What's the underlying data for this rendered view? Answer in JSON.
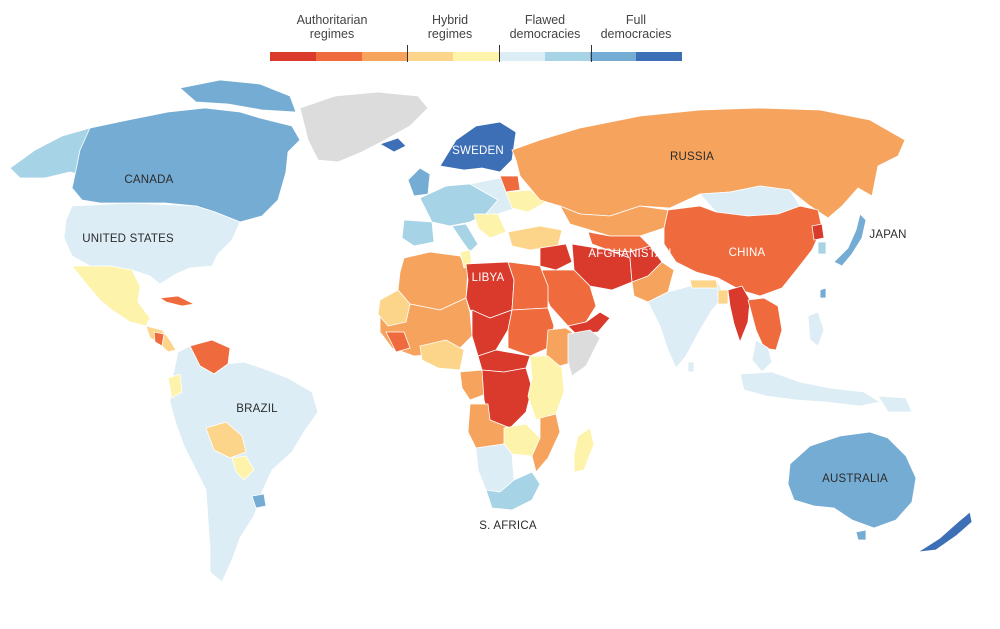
{
  "legend": {
    "categories": [
      {
        "label": "Authoritarian\nregimes",
        "colors": [
          "#d93a2b",
          "#ef6a3c",
          "#f6a35d"
        ]
      },
      {
        "label": "Hybrid\nregimes",
        "colors": [
          "#fdd58a",
          "#fdf3aa"
        ]
      },
      {
        "label": "Flawed\ndemocracies",
        "colors": [
          "#dcedf5",
          "#a7d3e6"
        ]
      },
      {
        "label": "Full\ndemocracies",
        "colors": [
          "#75acd3",
          "#3d6fb6"
        ]
      }
    ]
  },
  "map": {
    "no_data_color": "#dcdcdc",
    "country_labels": {
      "canada": "CANADA",
      "united_states": "UNITED STATES",
      "brazil": "BRAZIL",
      "sweden": "SWEDEN",
      "russia": "RUSSIA",
      "libya": "LIBYA",
      "afghanistan": "AFGHANISTAN",
      "china": "CHINA",
      "japan": "JAPAN",
      "australia": "AUSTRALIA",
      "south_africa": "S. AFRICA"
    }
  }
}
